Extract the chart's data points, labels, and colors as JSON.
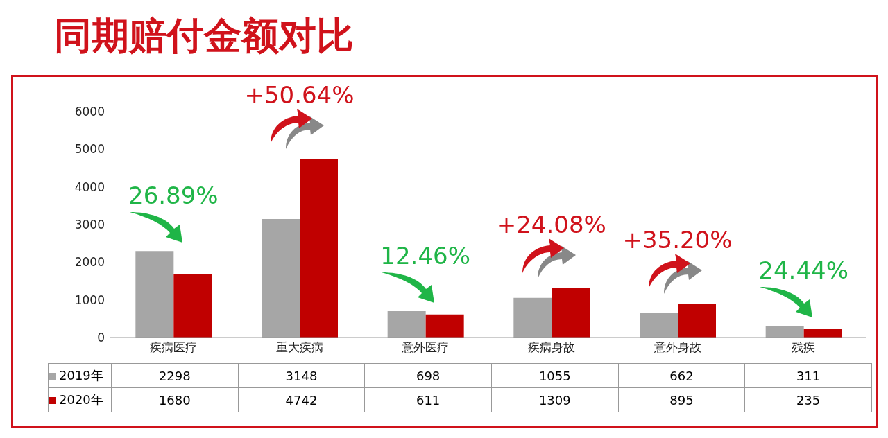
{
  "chart_data": {
    "type": "bar",
    "title": "同期赔付金额对比",
    "categories": [
      "疾病医疗",
      "重大疾病",
      "意外医疗",
      "疾病身故",
      "意外身故",
      "残疾"
    ],
    "series": [
      {
        "name": "2019年",
        "color": "#a6a6a6",
        "values": [
          2298,
          3148,
          698,
          1055,
          662,
          311
        ]
      },
      {
        "name": "2020年",
        "color": "#c00000",
        "values": [
          1680,
          4742,
          611,
          1309,
          895,
          235
        ]
      }
    ],
    "ylim": [
      0,
      6000
    ],
    "yticks": [
      0,
      1000,
      2000,
      3000,
      4000,
      5000,
      6000
    ],
    "grid": false,
    "legend": "bottom",
    "data_labels": true,
    "annotations": [
      "26.89%",
      "+50.64%",
      "12.46%",
      "+24.08%",
      "+35.20%",
      "24.44%"
    ]
  }
}
